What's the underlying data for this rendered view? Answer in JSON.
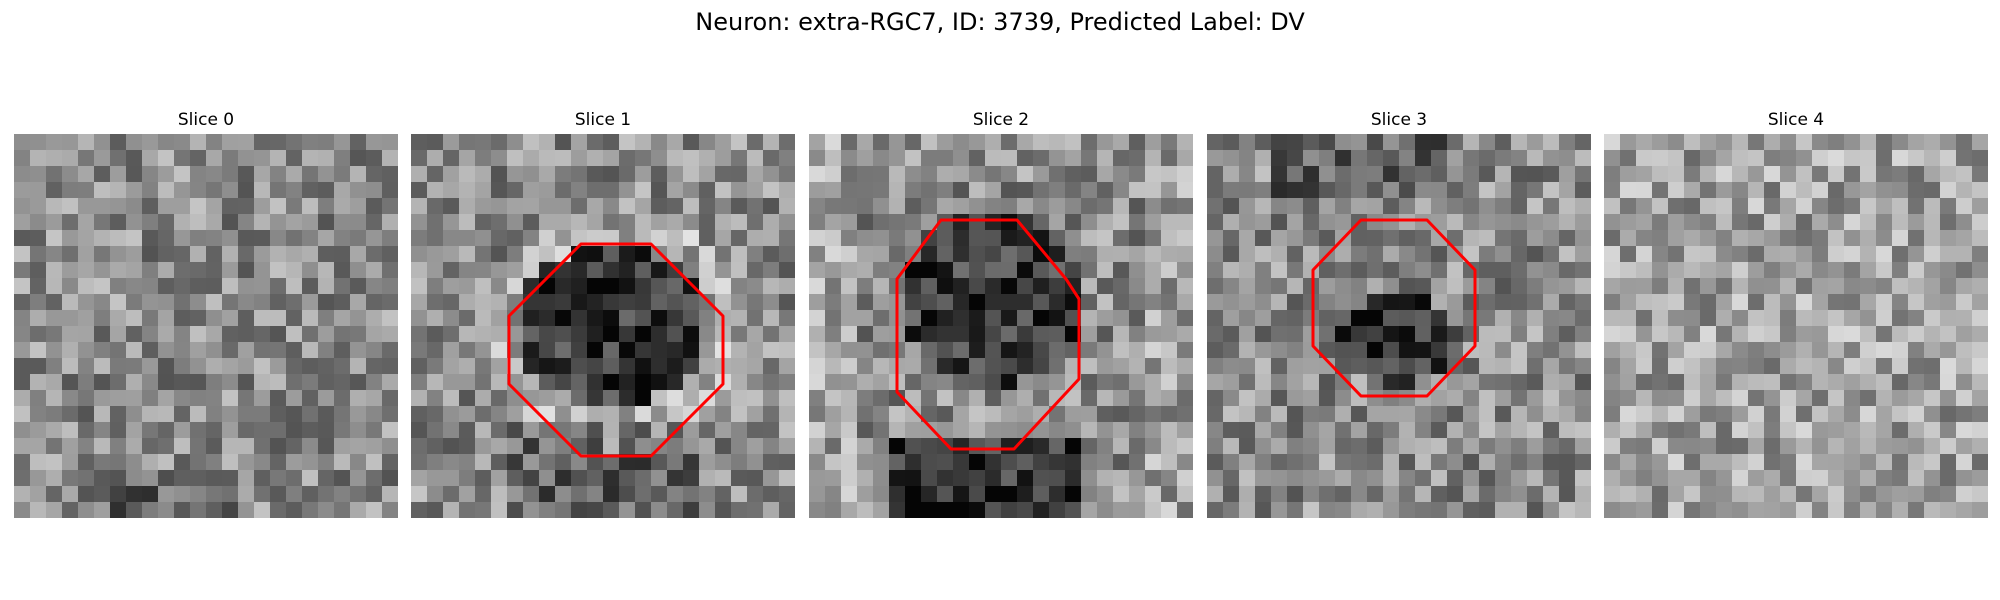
{
  "figure": {
    "title": "Neuron: extra-RGC7, ID: 3739, Predicted Label: DV",
    "contour_color": "#ff0000"
  },
  "panels": [
    {
      "title": "Slice 0",
      "has_contour": false
    },
    {
      "title": "Slice 1",
      "has_contour": true
    },
    {
      "title": "Slice 2",
      "has_contour": true
    },
    {
      "title": "Slice 3",
      "has_contour": true
    },
    {
      "title": "Slice 4",
      "has_contour": false
    }
  ]
}
